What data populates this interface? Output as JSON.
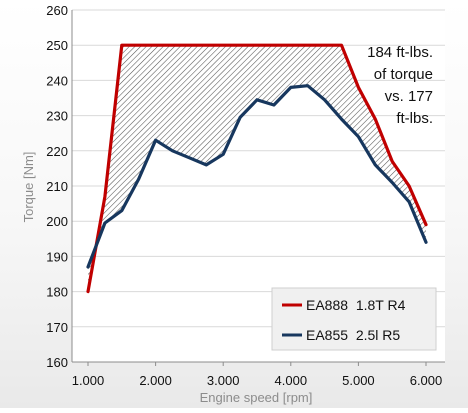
{
  "chart_data": {
    "type": "line",
    "title": "",
    "xlabel": "Engine speed [rpm]",
    "ylabel": "Torque [Nm]",
    "xlim": [
      1000,
      6000
    ],
    "ylim": [
      160,
      260
    ],
    "x_ticks": [
      1000,
      2000,
      3000,
      4000,
      5000,
      6000
    ],
    "x_tick_labels": [
      "1.000",
      "2.000",
      "3.000",
      "4.000",
      "5.000",
      "6.000"
    ],
    "y_ticks": [
      160,
      170,
      180,
      190,
      200,
      210,
      220,
      230,
      240,
      250,
      260
    ],
    "grid": "horizontal",
    "legend_position": "bottom-right",
    "fill_between": {
      "upper": "EA888  1.8T R4",
      "lower": "EA855  2.5l R5",
      "pattern": "diagonal-hatch"
    },
    "annotation": [
      "184  ft-lbs.",
      "of torque",
      "vs.  177",
      "ft-lbs."
    ],
    "series": [
      {
        "name": "EA888  1.8T R4",
        "color": "#c00000",
        "x": [
          1000,
          1250,
          1500,
          4750,
          5000,
          5250,
          5500,
          5750,
          6000
        ],
        "y": [
          180,
          207,
          250,
          250,
          238,
          229,
          217,
          210,
          199
        ]
      },
      {
        "name": "EA855  2.5l R5",
        "color": "#17375e",
        "x": [
          1000,
          1250,
          1500,
          1750,
          2000,
          2250,
          2500,
          2750,
          3000,
          3250,
          3500,
          3750,
          4000,
          4250,
          4500,
          4750,
          5000,
          5250,
          5500,
          5750,
          6000
        ],
        "y": [
          187,
          199.5,
          203,
          212,
          223,
          220,
          218,
          216,
          219,
          229.5,
          234.5,
          233,
          238,
          238.5,
          234.5,
          229,
          224,
          216,
          211,
          205.5,
          194
        ]
      }
    ]
  }
}
